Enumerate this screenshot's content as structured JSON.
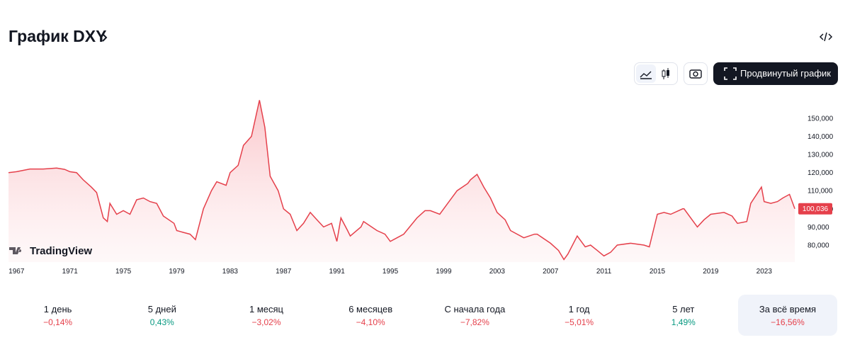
{
  "header": {
    "title": "График DXY",
    "button": "Продвинутый график"
  },
  "logo": "TradingView",
  "chart_data": {
    "type": "line",
    "color": "#e5404b",
    "x": [
      1966.4,
      1967,
      1968,
      1969,
      1970,
      1970.6,
      1971,
      1971.5,
      1972,
      1972.6,
      1973,
      1973.5,
      1973.8,
      1974,
      1974.5,
      1975,
      1975.5,
      1976,
      1976.5,
      1977,
      1977.5,
      1978,
      1978.8,
      1979,
      1979.5,
      1980,
      1980.4,
      1981,
      1981.6,
      1982,
      1982.7,
      1983,
      1983.6,
      1984,
      1984.6,
      1985.2,
      1985.6,
      1986,
      1986.6,
      1987,
      1987.5,
      1988,
      1988.5,
      1989,
      1989.5,
      1990,
      1990.6,
      1991,
      1991.3,
      1991.8,
      1992,
      1992.8,
      1993,
      1994,
      1994.6,
      1995,
      1995.5,
      1996,
      1997,
      1997.6,
      1998,
      1998.7,
      1999,
      2000,
      2000.8,
      2001,
      2001.5,
      2002,
      2002.5,
      2003,
      2003.6,
      2004,
      2005,
      2005.8,
      2006,
      2007,
      2007.6,
      2008,
      2008.3,
      2009,
      2009.6,
      2010,
      2010.5,
      2011,
      2011.5,
      2012,
      2013,
      2014,
      2014.4,
      2015,
      2015.5,
      2016,
      2016.9,
      2017,
      2018,
      2018.5,
      2019,
      2020,
      2020.6,
      2021,
      2021.7,
      2022,
      2022.8,
      2023,
      2023.5,
      2024,
      2024.4,
      2024.9,
      2025.3
    ],
    "values": [
      120,
      120.5,
      122,
      122,
      122.5,
      121.8,
      120.5,
      120,
      116,
      112,
      109,
      95,
      93,
      103,
      97,
      99,
      97,
      105,
      106,
      104,
      103,
      96,
      92,
      88,
      87,
      86,
      83,
      100,
      110,
      115,
      113,
      120,
      124,
      135,
      140,
      160,
      145,
      118,
      110,
      100,
      97,
      88,
      92,
      98,
      94,
      90,
      92,
      82,
      95,
      88,
      85,
      90,
      93,
      88,
      86,
      82,
      84,
      86,
      95,
      99,
      99,
      97,
      100,
      110,
      114,
      116,
      119,
      112,
      106,
      98,
      94,
      88,
      84,
      86,
      86,
      81,
      77,
      72,
      75,
      85,
      79,
      80,
      77,
      74,
      76,
      80,
      81,
      80,
      79,
      97,
      98,
      97,
      100,
      100,
      90,
      94,
      97,
      98,
      96,
      92,
      93,
      103,
      112,
      104,
      103,
      104,
      106,
      108,
      100.036
    ],
    "last_value_label": "100,036",
    "xlim": [
      1966.4,
      2025.4
    ],
    "ylim": [
      70.6,
      162.5
    ],
    "xticks": [
      1967,
      1971,
      1975,
      1979,
      1983,
      1987,
      1991,
      1995,
      1999,
      2003,
      2007,
      2011,
      2015,
      2019,
      2023
    ],
    "yticks": [
      {
        "value": 80,
        "label": "80,000"
      },
      {
        "value": 90,
        "label": "90,000"
      },
      {
        "value": 100,
        "label": "100,000"
      },
      {
        "value": 110,
        "label": "110,000"
      },
      {
        "value": 120,
        "label": "120,000"
      },
      {
        "value": 130,
        "label": "130,000"
      },
      {
        "value": 140,
        "label": "140,000"
      },
      {
        "value": 150,
        "label": "150,000"
      }
    ]
  },
  "periods": [
    {
      "label": "1 день",
      "change": "−0,14%"
    },
    {
      "label": "5 дней",
      "change": "0,43%"
    },
    {
      "label": "1 месяц",
      "change": "−3,02%"
    },
    {
      "label": "6 месяцев",
      "change": "−4,10%"
    },
    {
      "label": "С начала года",
      "change": "−7,82%"
    },
    {
      "label": "1 год",
      "change": "−5,01%"
    },
    {
      "label": "5 лет",
      "change": "1,49%"
    },
    {
      "label": "За всё время",
      "change": "−16,56%"
    }
  ],
  "selected_period": 7
}
